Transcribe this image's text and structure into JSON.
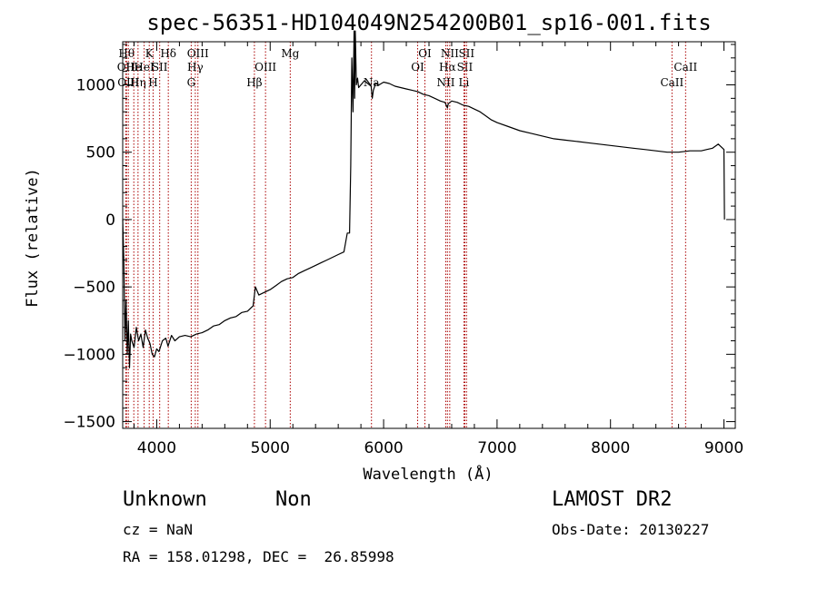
{
  "chart_data": {
    "type": "line",
    "title": "spec-56351-HD104049N254200B01_sp16-001.fits",
    "xlabel": "Wavelength (Å)",
    "ylabel": "Flux (relative)",
    "xlim": [
      3700,
      9100
    ],
    "ylim": [
      -1550,
      1320
    ],
    "xticks": [
      4000,
      5000,
      6000,
      7000,
      8000,
      9000
    ],
    "yticks": [
      -1500,
      -1000,
      -500,
      0,
      500,
      1000
    ],
    "series": [
      {
        "x": [
          3700,
          3710,
          3720,
          3730,
          3740,
          3750,
          3760,
          3770,
          3780,
          3800,
          3820,
          3840,
          3860,
          3880,
          3900,
          3920,
          3940,
          3960,
          3980,
          4000,
          4020,
          4050,
          4080,
          4100,
          4130,
          4160,
          4200,
          4250,
          4300,
          4350,
          4400,
          4450,
          4500,
          4550,
          4600,
          4650,
          4700,
          4750,
          4800,
          4850,
          4870,
          4900,
          4950,
          5000,
          5050,
          5100,
          5150,
          5200,
          5250,
          5300,
          5350,
          5400,
          5450,
          5500,
          5550,
          5600,
          5650,
          5680,
          5700,
          5710,
          5720,
          5730,
          5740,
          5745,
          5750,
          5760,
          5770,
          5780,
          5800,
          5830,
          5860,
          5890,
          5900,
          5910,
          5930,
          5960,
          6000,
          6050,
          6100,
          6150,
          6200,
          6250,
          6300,
          6350,
          6400,
          6450,
          6500,
          6540,
          6563,
          6570,
          6600,
          6650,
          6700,
          6750,
          6800,
          6850,
          6900,
          6950,
          7000,
          7100,
          7200,
          7300,
          7400,
          7500,
          7600,
          7700,
          7800,
          7900,
          8000,
          8100,
          8200,
          8300,
          8400,
          8500,
          8600,
          8700,
          8800,
          8850,
          8900,
          8950,
          9000,
          9005
        ],
        "y": [
          0,
          -300,
          -900,
          -600,
          -1000,
          -750,
          -1100,
          -850,
          -900,
          -950,
          -800,
          -900,
          -850,
          -950,
          -820,
          -880,
          -920,
          -1000,
          -1020,
          -960,
          -980,
          -900,
          -880,
          -940,
          -860,
          -900,
          -870,
          -860,
          -870,
          -850,
          -840,
          -820,
          -790,
          -780,
          -750,
          -730,
          -720,
          -690,
          -680,
          -640,
          -500,
          -560,
          -540,
          -520,
          -490,
          -460,
          -440,
          -430,
          -400,
          -380,
          -360,
          -340,
          -320,
          -300,
          -280,
          -260,
          -240,
          -100,
          -100,
          400,
          1200,
          800,
          1400,
          900,
          1400,
          1000,
          1050,
          980,
          1000,
          1030,
          1010,
          990,
          900,
          960,
          1010,
          1000,
          1020,
          1010,
          990,
          980,
          970,
          960,
          950,
          930,
          920,
          900,
          880,
          870,
          830,
          860,
          880,
          870,
          850,
          840,
          820,
          800,
          770,
          740,
          720,
          690,
          660,
          640,
          620,
          600,
          590,
          580,
          570,
          560,
          550,
          540,
          530,
          520,
          510,
          500,
          500,
          510,
          510,
          520,
          530,
          560,
          520,
          0
        ],
        "color": "#000000"
      }
    ],
    "spectral_lines": [
      {
        "x": 3727,
        "label": "OII",
        "row": 2
      },
      {
        "x": 3734,
        "label": "Hθ",
        "row": 1
      },
      {
        "x": 3750,
        "label": "OIII",
        "row": 3
      },
      {
        "x": 3798,
        "label": "He",
        "row": 2
      },
      {
        "x": 3835,
        "label": "Hη",
        "row": 3
      },
      {
        "x": 3889,
        "label": "HeI",
        "row": 2
      },
      {
        "x": 3934,
        "label": "K",
        "row": 1
      },
      {
        "x": 3968,
        "label": "H",
        "row": 3
      },
      {
        "x": 4026,
        "label": "SII",
        "row": 2
      },
      {
        "x": 4102,
        "label": "Hδ",
        "row": 1
      },
      {
        "x": 4304,
        "label": "G",
        "row": 3
      },
      {
        "x": 4340,
        "label": "Hγ",
        "row": 2
      },
      {
        "x": 4363,
        "label": "OIII",
        "row": 1
      },
      {
        "x": 4861,
        "label": "Hβ",
        "row": 3
      },
      {
        "x": 4959,
        "label": "OIII",
        "row": 2
      },
      {
        "x": 5177,
        "label": "Mg",
        "row": 1
      },
      {
        "x": 5893,
        "label": "Na",
        "row": 3
      },
      {
        "x": 6300,
        "label": "OI",
        "row": 2
      },
      {
        "x": 6364,
        "label": "OI",
        "row": 1
      },
      {
        "x": 6548,
        "label": "NII",
        "row": 3
      },
      {
        "x": 6563,
        "label": "Hα",
        "row": 2
      },
      {
        "x": 6583,
        "label": "NII",
        "row": 1
      },
      {
        "x": 6708,
        "label": "Li",
        "row": 3
      },
      {
        "x": 6716,
        "label": "SII",
        "row": 2
      },
      {
        "x": 6731,
        "label": "SII",
        "row": 1
      },
      {
        "x": 8542,
        "label": "CaII",
        "row": 3
      },
      {
        "x": 8662,
        "label": "CaII",
        "row": 2
      }
    ],
    "line_color": "#aa0000",
    "grid": false
  },
  "info": {
    "class": "Unknown",
    "subclass": "Non",
    "survey": "LAMOST DR2",
    "cz": "cz = NaN",
    "obs_date": "Obs-Date: 20130227",
    "coords": "RA = 158.01298, DEC =  26.85998"
  }
}
